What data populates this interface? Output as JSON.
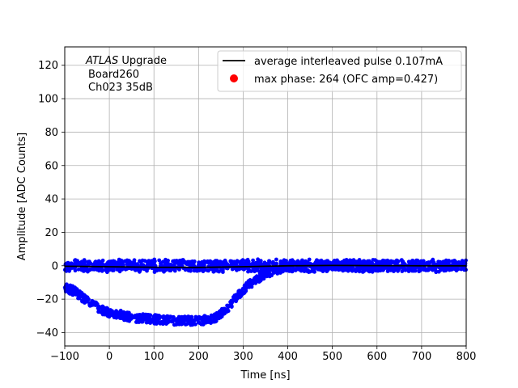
{
  "chart_data": {
    "type": "scatter",
    "xlabel": "Time [ns]",
    "ylabel": "Amplitude [ADC Counts]",
    "xlim": [
      -100,
      800
    ],
    "ylim": [
      -48,
      131
    ],
    "xticks": [
      -100,
      0,
      100,
      200,
      300,
      400,
      500,
      600,
      700,
      800
    ],
    "yticks": [
      -40,
      -20,
      0,
      20,
      40,
      60,
      80,
      100,
      120
    ],
    "xtick_labels": [
      "−100",
      "0",
      "100",
      "200",
      "300",
      "400",
      "500",
      "600",
      "700",
      "800"
    ],
    "ytick_labels": [
      "−40",
      "−20",
      "0",
      "20",
      "40",
      "60",
      "80",
      "100",
      "120"
    ],
    "grid": true,
    "legend_position": "top-right",
    "annotation": {
      "line1_italic": "ATLAS",
      "line1_rest": " Upgrade",
      "line2": "Board260",
      "line3": "Ch023 35dB"
    },
    "series": [
      {
        "name": "average interleaved pulse 0.107mA",
        "kind": "line",
        "color": "#000000",
        "x": [
          -100,
          0,
          100,
          200,
          300,
          400,
          500,
          600,
          700,
          800
        ],
        "y": [
          -0.3,
          -0.6,
          -0.9,
          -1.0,
          -0.6,
          0.0,
          0.2,
          0.1,
          0.0,
          0.0
        ]
      },
      {
        "name": "max phase: 264 (OFC amp=0.427)",
        "kind": "scatter",
        "color": "#ff0000",
        "x": [],
        "y": []
      },
      {
        "name": "",
        "kind": "scatter-band",
        "color": "#0000ff",
        "x": [
          -100,
          800
        ],
        "y_center": 0,
        "y_spread": 4
      },
      {
        "name": "",
        "kind": "scatter-pulse",
        "color": "#0000ff",
        "x": [
          -100,
          -80,
          -60,
          -40,
          -20,
          0,
          20,
          50,
          100,
          150,
          200,
          230,
          250,
          270,
          290,
          310,
          330,
          350,
          370,
          390,
          410
        ],
        "y": [
          -13,
          -15,
          -19,
          -23,
          -26,
          -28,
          -29,
          -31,
          -32,
          -33,
          -33,
          -32,
          -29,
          -24,
          -17,
          -12,
          -8,
          -5,
          -3,
          -1,
          0
        ]
      }
    ]
  }
}
